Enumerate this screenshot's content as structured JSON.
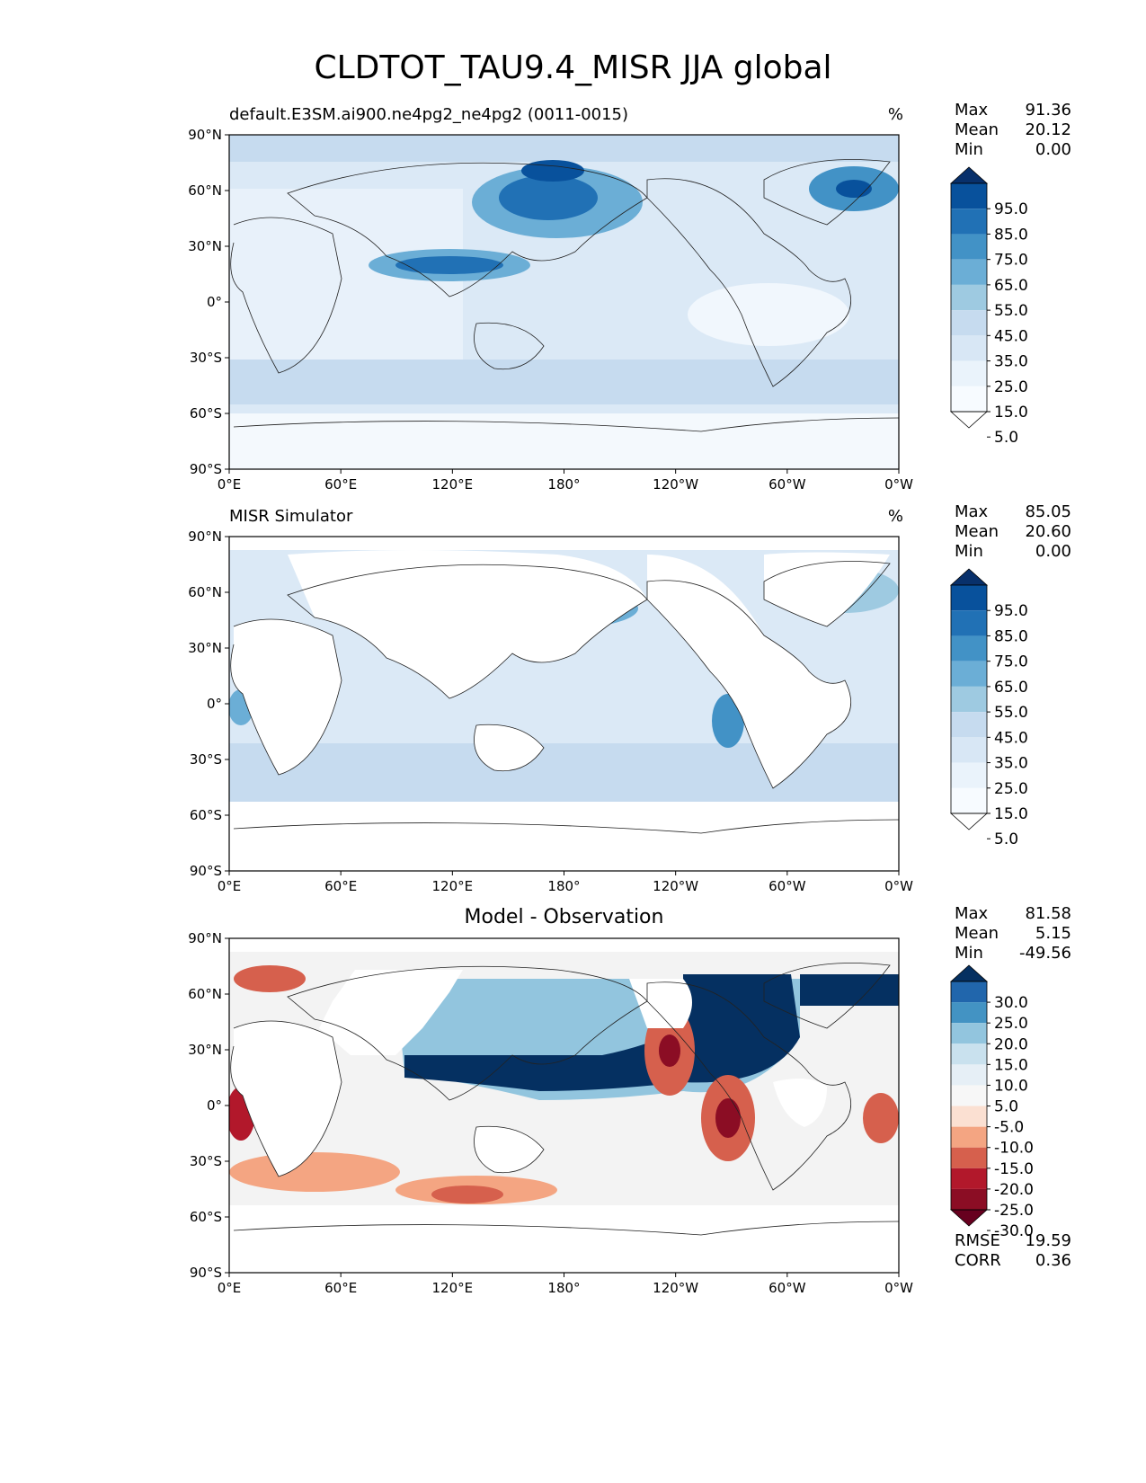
{
  "figure": {
    "title": "CLDTOT_TAU9.4_MISR JJA global"
  },
  "axes": {
    "lon_ticks": [
      "0°E",
      "60°E",
      "120°E",
      "180°",
      "120°W",
      "60°W",
      "0°W"
    ],
    "lat_ticks": [
      "90°N",
      "60°N",
      "30°N",
      "0°",
      "30°S",
      "60°S",
      "90°S"
    ]
  },
  "panels": [
    {
      "title_left": "default.E3SM.ai900.ne4pg2_ne4pg2 (0011-0015)",
      "title_center": "",
      "unit": "%",
      "stats": [
        {
          "label": "Max",
          "value": "91.36"
        },
        {
          "label": "Mean",
          "value": "20.12"
        },
        {
          "label": "Min",
          "value": "0.00"
        }
      ],
      "colorbar": {
        "levels": [
          "95.0",
          "85.0",
          "75.0",
          "65.0",
          "55.0",
          "45.0",
          "35.0",
          "25.0",
          "15.0",
          "5.0"
        ],
        "colors": [
          "#08306b",
          "#08519c",
          "#2171b5",
          "#4292c6",
          "#6baed6",
          "#9ecae1",
          "#c6dbef",
          "#d8e7f5",
          "#eaf3fb",
          "#f7fbff",
          "#ffffff"
        ]
      },
      "extra_stats": []
    },
    {
      "title_left": "MISR Simulator",
      "title_center": "",
      "unit": "%",
      "stats": [
        {
          "label": "Max",
          "value": "85.05"
        },
        {
          "label": "Mean",
          "value": "20.60"
        },
        {
          "label": "Min",
          "value": "0.00"
        }
      ],
      "colorbar": {
        "levels": [
          "95.0",
          "85.0",
          "75.0",
          "65.0",
          "55.0",
          "45.0",
          "35.0",
          "25.0",
          "15.0",
          "5.0"
        ],
        "colors": [
          "#08306b",
          "#08519c",
          "#2171b5",
          "#4292c6",
          "#6baed6",
          "#9ecae1",
          "#c6dbef",
          "#d8e7f5",
          "#eaf3fb",
          "#f7fbff",
          "#ffffff"
        ]
      },
      "extra_stats": []
    },
    {
      "title_left": "",
      "title_center": "Model - Observation",
      "unit": "",
      "stats": [
        {
          "label": "Max",
          "value": "81.58"
        },
        {
          "label": "Mean",
          "value": "5.15"
        },
        {
          "label": "Min",
          "value": "-49.56"
        }
      ],
      "colorbar": {
        "levels": [
          "30.0",
          "25.0",
          "20.0",
          "15.0",
          "10.0",
          "5.0",
          "-5.0",
          "-10.0",
          "-15.0",
          "-20.0",
          "-25.0",
          "-30.0"
        ],
        "colors": [
          "#053061",
          "#2166ac",
          "#4393c3",
          "#92c5de",
          "#c9e1ee",
          "#e6eff6",
          "#f7f7f7",
          "#fbe0d2",
          "#f4a582",
          "#d6604d",
          "#b2182b",
          "#8b0d24",
          "#67001f"
        ]
      },
      "extra_stats": [
        {
          "label": "RMSE",
          "value": "19.59"
        },
        {
          "label": "CORR",
          "value": "0.36"
        }
      ]
    }
  ]
}
